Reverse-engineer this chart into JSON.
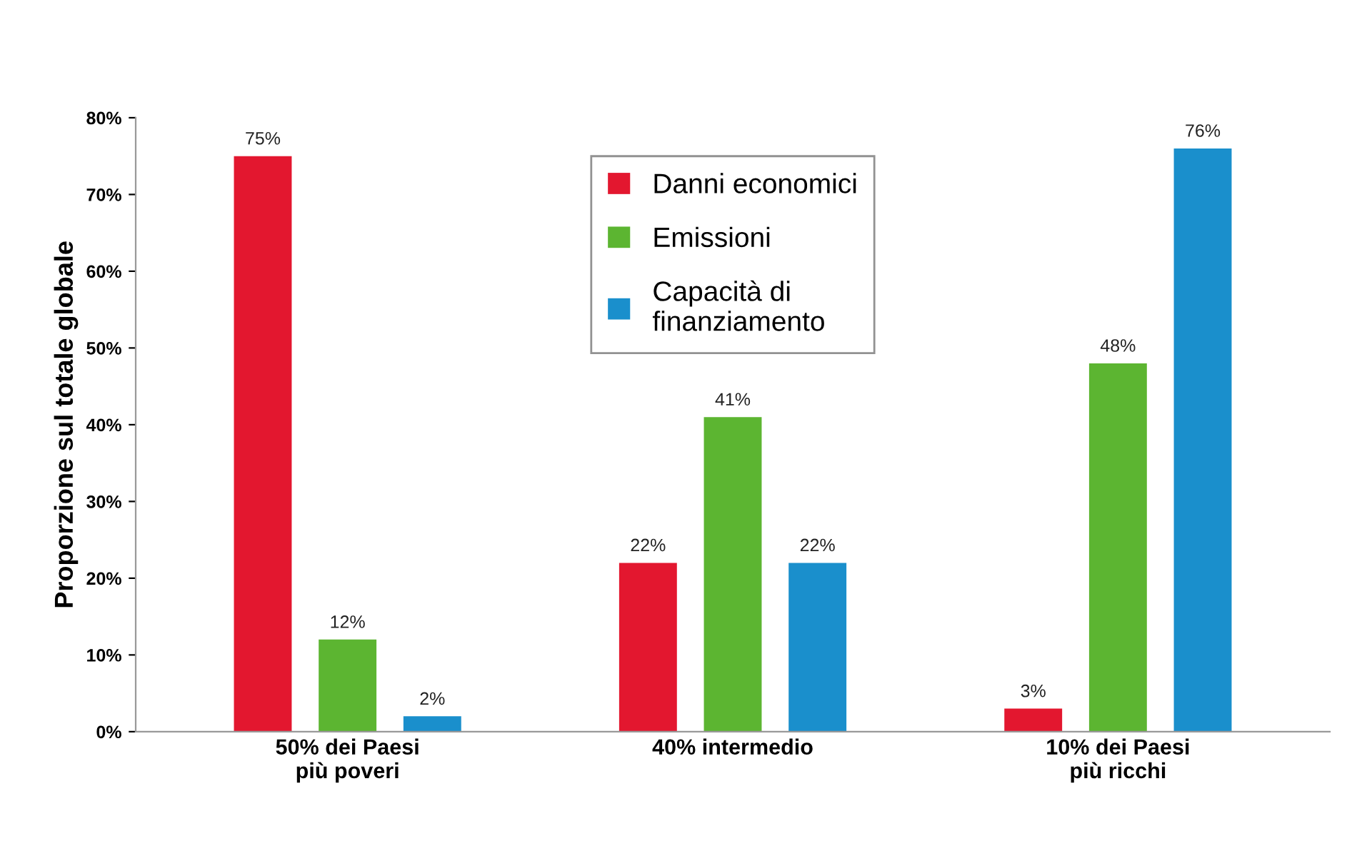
{
  "chart_data": {
    "type": "bar",
    "ylabel": "Proporzione sul totale globale",
    "categories": [
      "50% dei Paesi\npiù poveri",
      "40% intermedio",
      "10% dei Paesi\npiù ricchi"
    ],
    "series": [
      {
        "name": "Danni economici",
        "color": "#e3172f",
        "values": [
          75,
          22,
          3
        ],
        "value_labels": [
          "75%",
          "22%",
          "3%"
        ]
      },
      {
        "name": "Emissioni",
        "color": "#5cb531",
        "values": [
          12,
          41,
          48
        ],
        "value_labels": [
          "12%",
          "41%",
          "48%"
        ]
      },
      {
        "name": "Capacità di\nfinanziamento",
        "color": "#1a8fcc",
        "values": [
          2,
          22,
          76
        ],
        "value_labels": [
          "2%",
          "22%",
          "76%"
        ]
      }
    ],
    "ylim": [
      0,
      80
    ],
    "yticks": [
      {
        "value": 0,
        "label": "0%"
      },
      {
        "value": 10,
        "label": "10%"
      },
      {
        "value": 20,
        "label": "20%"
      },
      {
        "value": 30,
        "label": "30%"
      },
      {
        "value": 40,
        "label": "40%"
      },
      {
        "value": 50,
        "label": "50%"
      },
      {
        "value": 60,
        "label": "60%"
      },
      {
        "value": 70,
        "label": "70%"
      },
      {
        "value": 80,
        "label": "80%"
      }
    ],
    "grid": false,
    "legend": "top"
  }
}
